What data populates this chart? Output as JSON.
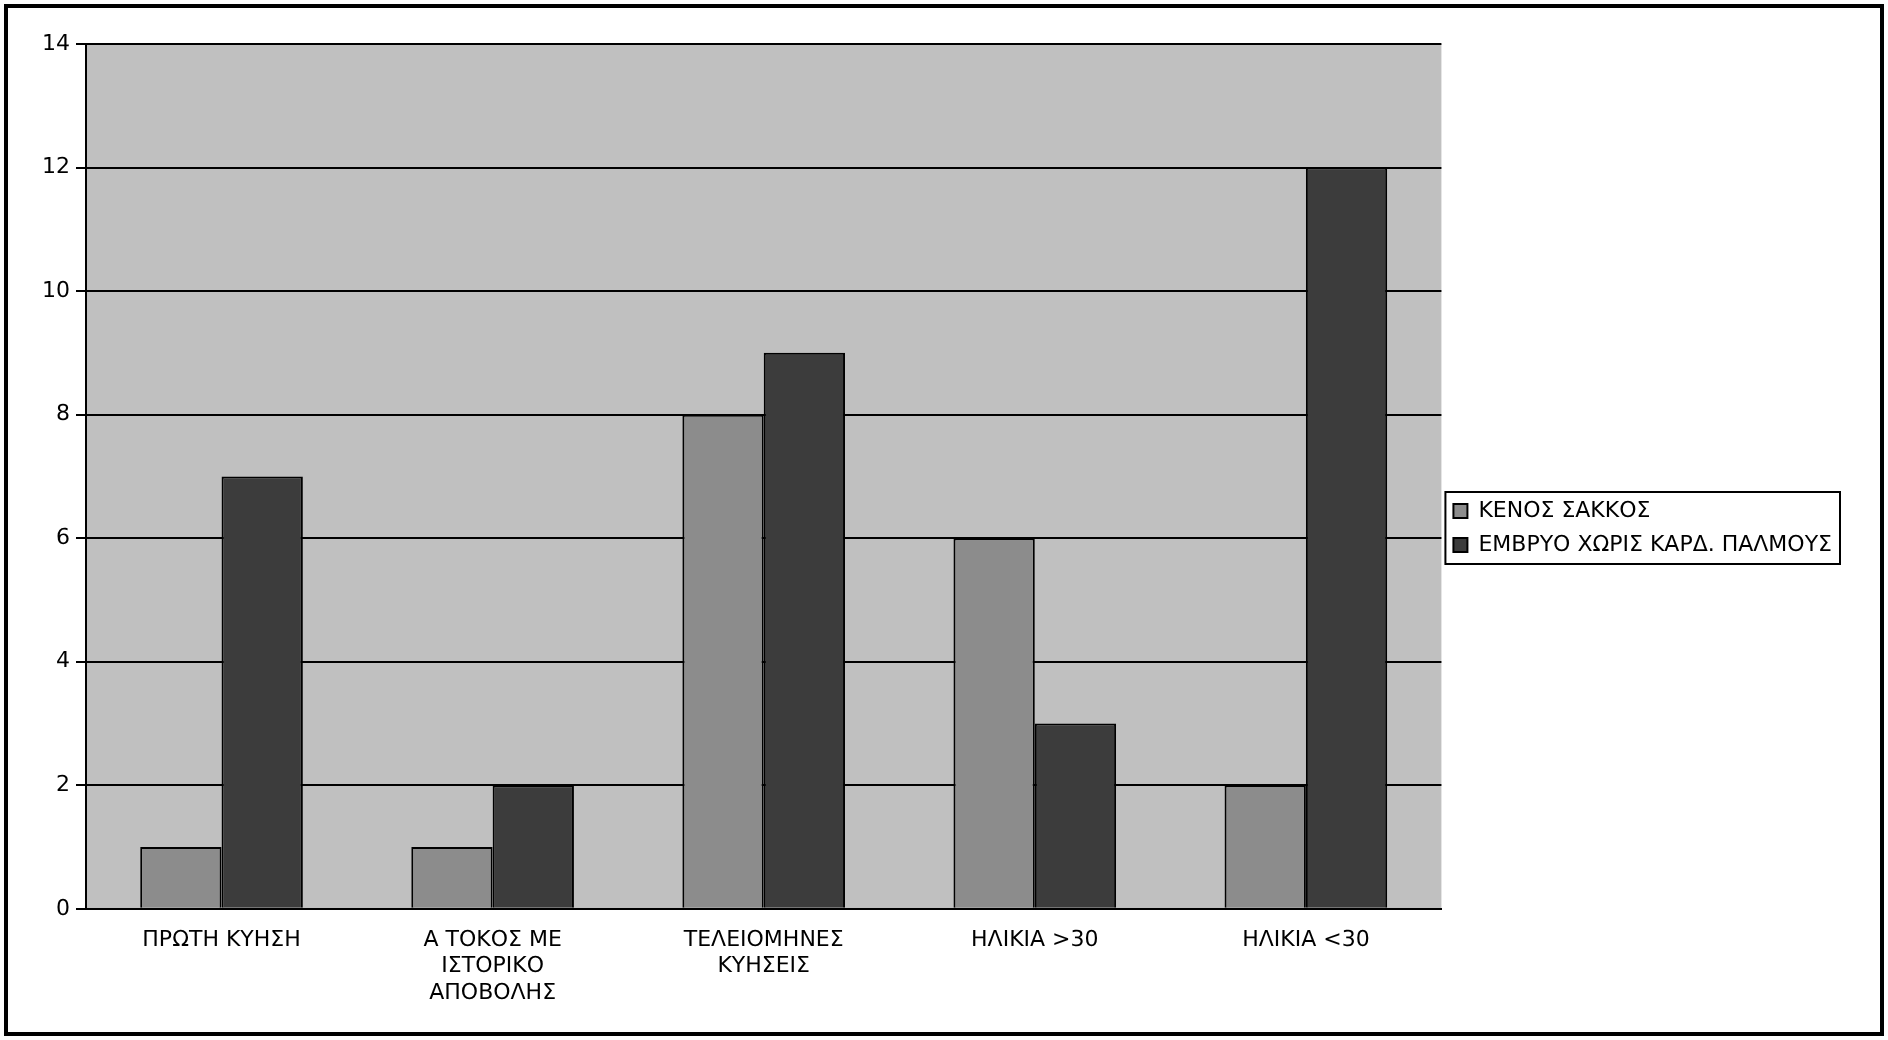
{
  "chart_data": {
    "type": "bar",
    "categories": [
      "ΠΡΩΤΗ ΚΥΗΣΗ",
      "Α ΤΟΚΟΣ ΜΕ ΙΣΤΟΡΙΚΟ ΑΠΟΒΟΛΗΣ",
      "ΤΕΛΕΙΟΜΗΝΕΣ ΚΥΗΣΕΙΣ",
      "ΗΛΙΚΙΑ >30",
      "ΗΛΙΚΙΑ <30"
    ],
    "series": [
      {
        "name": "ΚΕΝΟΣ ΣΑΚΚΟΣ",
        "color": "#8c8c8c",
        "values": [
          1,
          1,
          8,
          6,
          2
        ]
      },
      {
        "name": "ΕΜΒΡΥΟ ΧΩΡΙΣ ΚΑΡΔ. ΠΑΛΜΟΥΣ",
        "color": "#3c3c3c",
        "values": [
          7,
          2,
          9,
          3,
          12
        ]
      }
    ],
    "ylim": [
      0,
      14
    ],
    "yticks": [
      0,
      2,
      4,
      6,
      8,
      10,
      12,
      14
    ],
    "grid": "y",
    "legend": "right"
  }
}
